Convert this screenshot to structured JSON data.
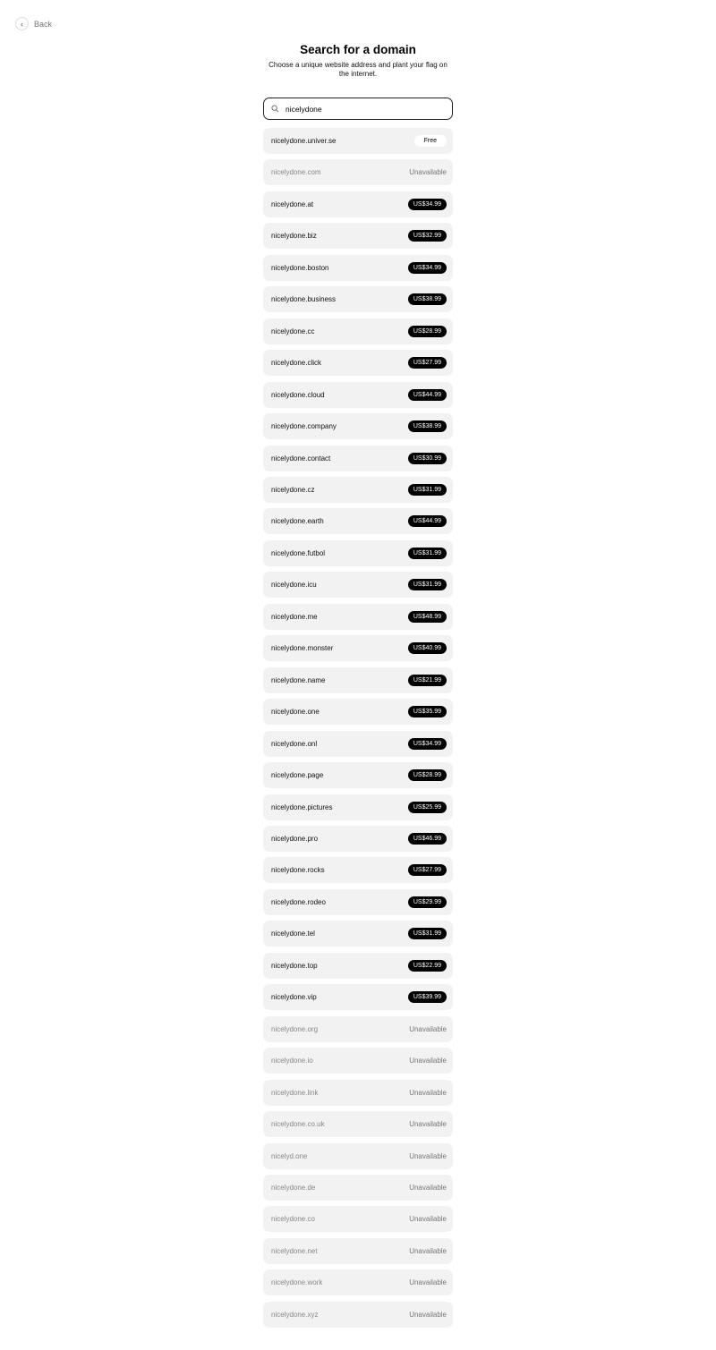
{
  "back_label": "Back",
  "title": "Search for a domain",
  "subtitle": "Choose a unique website address and plant your flag on the internet.",
  "search": {
    "value": "nicelydone",
    "icon": "search-icon"
  },
  "domains": [
    {
      "name": "nicelydone.univer.se",
      "status": "free",
      "label": "Free"
    },
    {
      "name": "nicelydone.com",
      "status": "unavailable",
      "label": "Unavailable"
    },
    {
      "name": "nicelydone.at",
      "status": "price",
      "label": "US$34.99"
    },
    {
      "name": "nicelydone.biz",
      "status": "price",
      "label": "US$32.99"
    },
    {
      "name": "nicelydone.boston",
      "status": "price",
      "label": "US$34.99"
    },
    {
      "name": "nicelydone.business",
      "status": "price",
      "label": "US$38.99"
    },
    {
      "name": "nicelydone.cc",
      "status": "price",
      "label": "US$28.99"
    },
    {
      "name": "nicelydone.click",
      "status": "price",
      "label": "US$27.99"
    },
    {
      "name": "nicelydone.cloud",
      "status": "price",
      "label": "US$44.99"
    },
    {
      "name": "nicelydone.company",
      "status": "price",
      "label": "US$38.99"
    },
    {
      "name": "nicelydone.contact",
      "status": "price",
      "label": "US$30.99"
    },
    {
      "name": "nicelydone.cz",
      "status": "price",
      "label": "US$31.99"
    },
    {
      "name": "nicelydone.earth",
      "status": "price",
      "label": "US$44.99"
    },
    {
      "name": "nicelydone.futbol",
      "status": "price",
      "label": "US$31.99"
    },
    {
      "name": "nicelydone.icu",
      "status": "price",
      "label": "US$31.99"
    },
    {
      "name": "nicelydone.me",
      "status": "price",
      "label": "US$48.99"
    },
    {
      "name": "nicelydone.monster",
      "status": "price",
      "label": "US$40.99"
    },
    {
      "name": "nicelydone.name",
      "status": "price",
      "label": "US$21.99"
    },
    {
      "name": "nicelydone.one",
      "status": "price",
      "label": "US$35.99"
    },
    {
      "name": "nicelydone.onl",
      "status": "price",
      "label": "US$34.99"
    },
    {
      "name": "nicelydone.page",
      "status": "price",
      "label": "US$28.99"
    },
    {
      "name": "nicelydone.pictures",
      "status": "price",
      "label": "US$25.99"
    },
    {
      "name": "nicelydone.pro",
      "status": "price",
      "label": "US$46.99"
    },
    {
      "name": "nicelydone.rocks",
      "status": "price",
      "label": "US$27.99"
    },
    {
      "name": "nicelydone.rodeo",
      "status": "price",
      "label": "US$29.99"
    },
    {
      "name": "nicelydone.tel",
      "status": "price",
      "label": "US$31.99"
    },
    {
      "name": "nicelydone.top",
      "status": "price",
      "label": "US$22.99"
    },
    {
      "name": "nicelydone.vip",
      "status": "price",
      "label": "US$39.99"
    },
    {
      "name": "nicelydone.org",
      "status": "unavailable",
      "label": "Unavailable"
    },
    {
      "name": "nicelydone.io",
      "status": "unavailable",
      "label": "Unavailable"
    },
    {
      "name": "nicelydone.link",
      "status": "unavailable",
      "label": "Unavailable"
    },
    {
      "name": "nicelydone.co.uk",
      "status": "unavailable",
      "label": "Unavailable"
    },
    {
      "name": "nicelyd.one",
      "status": "unavailable",
      "label": "Unavailable"
    },
    {
      "name": "nicelydone.de",
      "status": "unavailable",
      "label": "Unavailable"
    },
    {
      "name": "nicelydone.co",
      "status": "unavailable",
      "label": "Unavailable"
    },
    {
      "name": "nicelydone.net",
      "status": "unavailable",
      "label": "Unavailable"
    },
    {
      "name": "nicelydone.work",
      "status": "unavailable",
      "label": "Unavailable"
    },
    {
      "name": "nicelydone.xyz",
      "status": "unavailable",
      "label": "Unavailable"
    }
  ]
}
